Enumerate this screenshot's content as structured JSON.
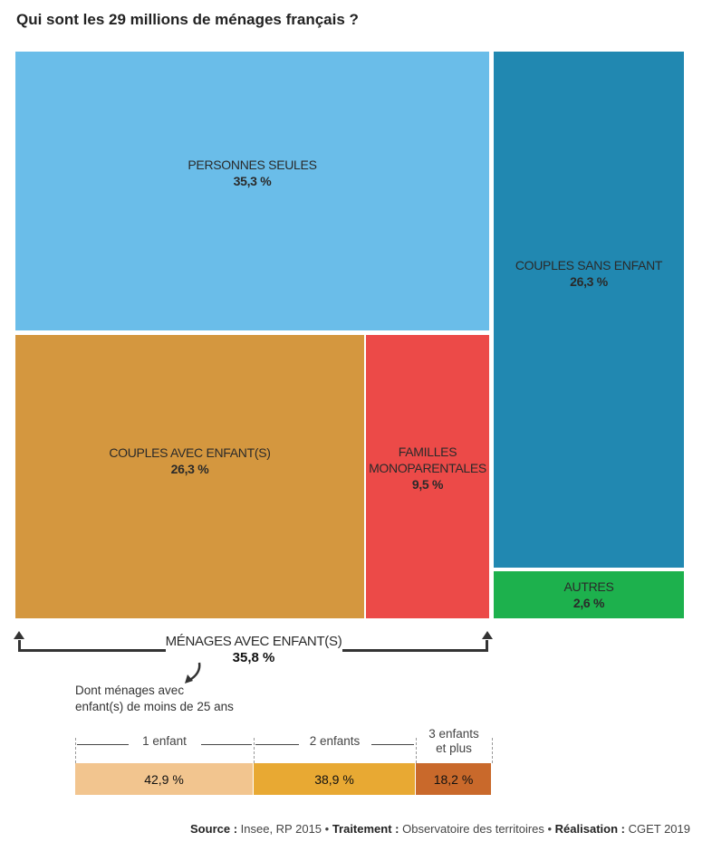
{
  "title": "Qui sont les 29 millions de ménages français ?",
  "chart_data": {
    "type": "treemap",
    "title": "Qui sont les 29 millions de ménages français ?",
    "unit": "%",
    "cells": [
      {
        "label": "PERSONNES SEULES",
        "value": 35.3,
        "value_text": "35,3 %",
        "color": "#6abde9"
      },
      {
        "label": "COUPLES AVEC ENFANT(S)",
        "value": 26.3,
        "value_text": "26,3 %",
        "color": "#d4973f"
      },
      {
        "label": "FAMILLES\nMONOPARENTALES",
        "value": 9.5,
        "value_text": "9,5 %",
        "color": "#ec4a48"
      },
      {
        "label": "COUPLES SANS ENFANT",
        "value": 26.3,
        "value_text": "26,3 %",
        "color": "#2188b1"
      },
      {
        "label": "AUTRES",
        "value": 2.6,
        "value_text": "2,6 %",
        "color": "#1db14d"
      }
    ],
    "group": {
      "label": "MÉNAGES AVEC ENFANT(S)",
      "value": 35.8,
      "value_text": "35,8 %"
    },
    "sub_chart": {
      "type": "stacked-bar",
      "note": "Dont ménages avec\nenfant(s) de moins de 25 ans",
      "categories": [
        "1 enfant",
        "2 enfants",
        "3 enfants\net plus"
      ],
      "values": [
        42.9,
        38.9,
        18.2
      ],
      "value_texts": [
        "42,9 %",
        "38,9 %",
        "18,2 %"
      ],
      "colors": [
        "#f2c58f",
        "#e8a933",
        "#c9692b"
      ]
    }
  },
  "source": {
    "source_label": "Source :",
    "source_text": " Insee, RP 2015 • ",
    "traitement_label": "Traitement :",
    "traitement_text": " Observatoire des territoires • ",
    "realisation_label": "Réalisation :",
    "realisation_text": " CGET 2019"
  }
}
